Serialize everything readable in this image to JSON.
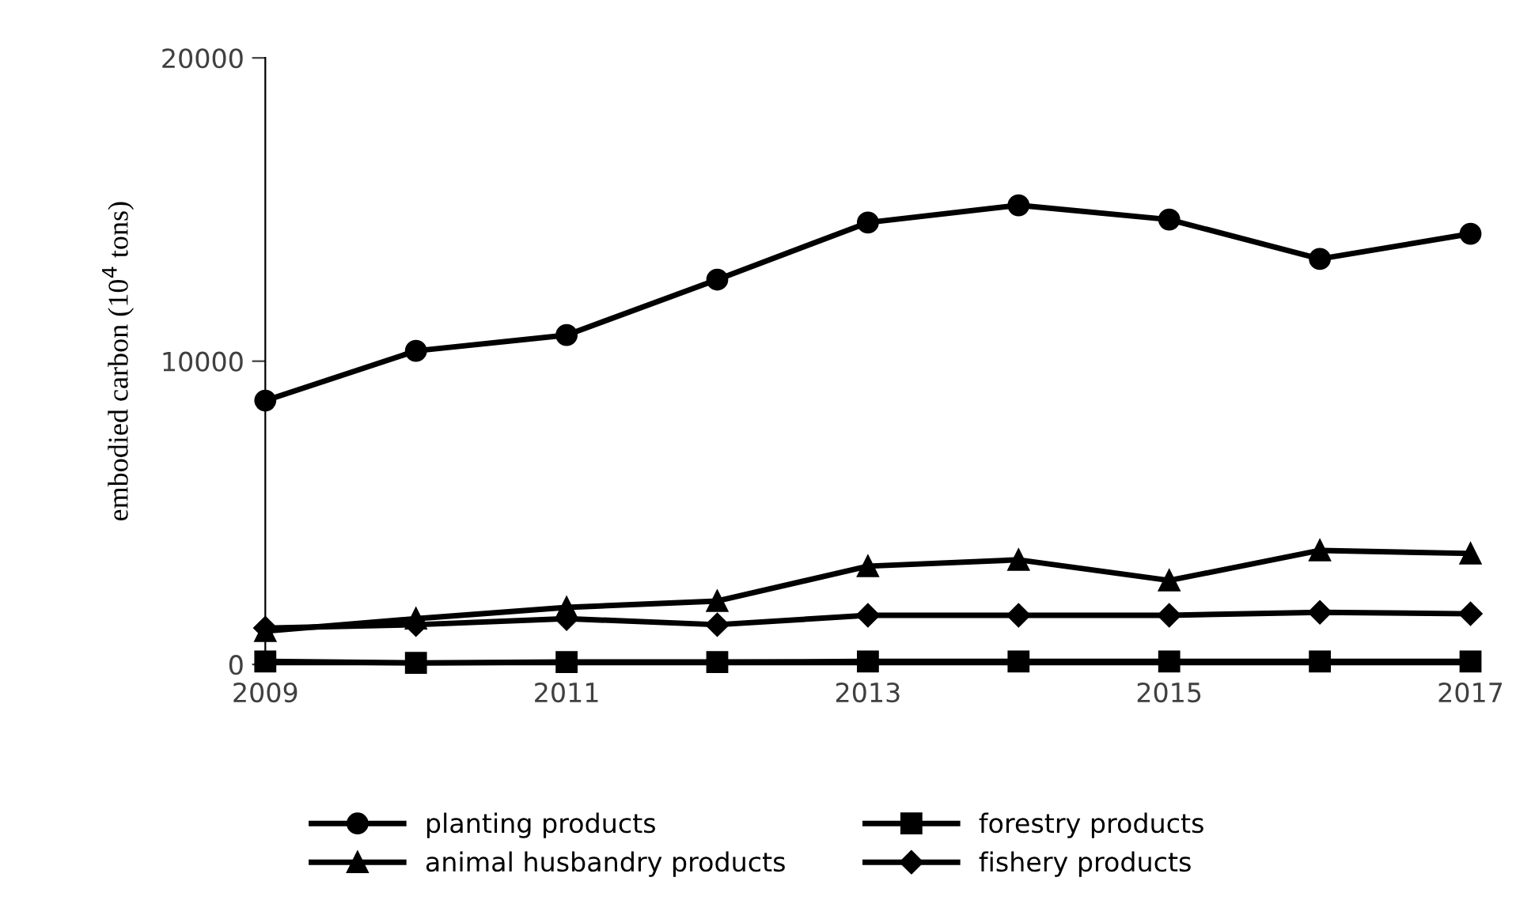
{
  "chart_data": {
    "type": "line",
    "ylabel": "embodied carbon (10$^{4}$ tons)",
    "x": [
      2009,
      2010,
      2011,
      2012,
      2013,
      2014,
      2015,
      2016,
      2017
    ],
    "xlim": [
      2009,
      2017
    ],
    "xticks": [
      2009,
      2011,
      2013,
      2015,
      2017
    ],
    "ylim": [
      0,
      20000
    ],
    "yticks": [
      0,
      10000,
      20000
    ],
    "grid": false,
    "legend": "bottom",
    "line_style": "solid",
    "series": [
      {
        "name": "planting products",
        "color": "#000000",
        "marker": "circle",
        "values": [
          8700,
          10340,
          10860,
          12690,
          14570,
          15140,
          14670,
          13370,
          14200
        ]
      },
      {
        "name": "forestry products",
        "color": "#000000",
        "marker": "square",
        "values": [
          100,
          50,
          80,
          80,
          100,
          100,
          100,
          100,
          100
        ]
      },
      {
        "name": "animal husbandry products",
        "color": "#000000",
        "marker": "triangle",
        "values": [
          1100,
          1510,
          1880,
          2090,
          3240,
          3450,
          2770,
          3760,
          3660
        ]
      },
      {
        "name": "fishery products",
        "color": "#000000",
        "marker": "diamond",
        "values": [
          1200,
          1310,
          1510,
          1310,
          1620,
          1620,
          1620,
          1720,
          1670
        ]
      }
    ]
  }
}
